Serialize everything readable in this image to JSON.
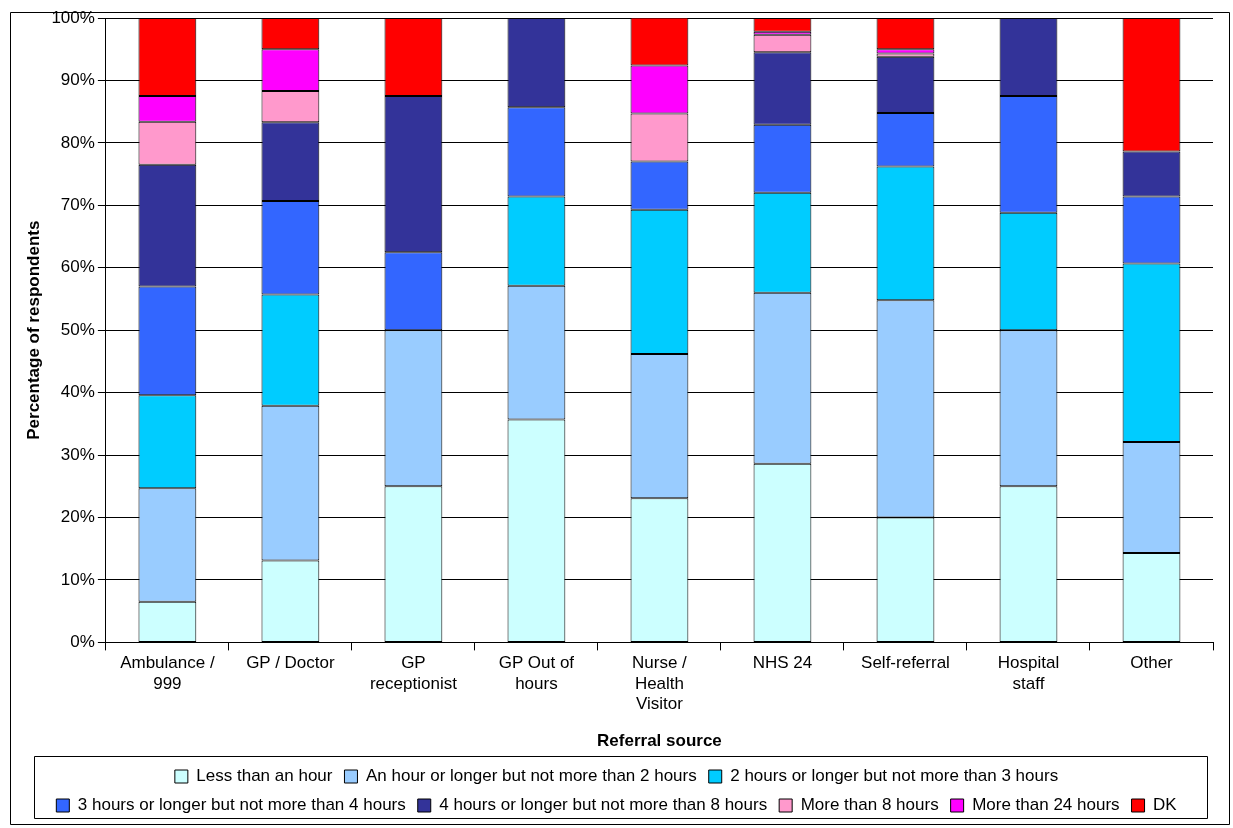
{
  "chart_data": {
    "type": "bar",
    "stacked": true,
    "xlabel": "Referral source",
    "ylabel": "Percentage of respondents",
    "categories": [
      "Ambulance / 999",
      "GP / Doctor",
      "GP receptionist",
      "GP Out of hours",
      "Nurse / Health Visitor",
      "NHS 24",
      "Self-referral",
      "Hospital staff",
      "Other"
    ],
    "series": [
      {
        "name": "Less than an hour",
        "color": "#ccffff",
        "values": [
          6.5,
          13.1,
          25,
          35.7,
          23.1,
          28.6,
          20,
          25,
          14.3
        ]
      },
      {
        "name": "An hour or longer but not more than 2 hours",
        "color": "#99ccff",
        "values": [
          18.2,
          24.8,
          25,
          21.4,
          23.1,
          27.4,
          34.8,
          25,
          17.8
        ]
      },
      {
        "name": "2 hours or longer but not more than 3 hours",
        "color": "#00ccff",
        "values": [
          14.9,
          17.8,
          0,
          14.3,
          23.1,
          16,
          21.4,
          18.8,
          28.6
        ]
      },
      {
        "name": "3 hours or longer but not more than 4 hours",
        "color": "#3366ff",
        "values": [
          17.4,
          15,
          12.5,
          14.3,
          7.7,
          10.9,
          8.6,
          18.7,
          10.7
        ]
      },
      {
        "name": "4 hours or longer but not more than 8 hours",
        "color": "#333399",
        "values": [
          19.5,
          12.6,
          25,
          14.3,
          0,
          11.6,
          9,
          12.5,
          7.2
        ]
      },
      {
        "name": "More than 8 hours",
        "color": "#ff99cc",
        "values": [
          6.9,
          5,
          0,
          0,
          7.7,
          2.8,
          0.5,
          0,
          0
        ]
      },
      {
        "name": "More than 24 hours",
        "color": "#ff00ff",
        "values": [
          4.1,
          6.7,
          0,
          0,
          7.7,
          0.5,
          0.7,
          0,
          0
        ]
      },
      {
        "name": "DK",
        "color": "#ff0000",
        "values": [
          12.5,
          5,
          12.5,
          0,
          7.7,
          2.2,
          5,
          0,
          21.4
        ]
      }
    ],
    "ylim": [
      0,
      100
    ],
    "yticks": [
      {
        "value": 0,
        "label": "0%"
      },
      {
        "value": 10,
        "label": "10%"
      },
      {
        "value": 20,
        "label": "20%"
      },
      {
        "value": 30,
        "label": "30%"
      },
      {
        "value": 40,
        "label": "40%"
      },
      {
        "value": 50,
        "label": "50%"
      },
      {
        "value": 60,
        "label": "60%"
      },
      {
        "value": 70,
        "label": "70%"
      },
      {
        "value": 80,
        "label": "80%"
      },
      {
        "value": 90,
        "label": "90%"
      },
      {
        "value": 100,
        "label": "100%"
      }
    ],
    "grid": "y",
    "legend": "bottom"
  }
}
